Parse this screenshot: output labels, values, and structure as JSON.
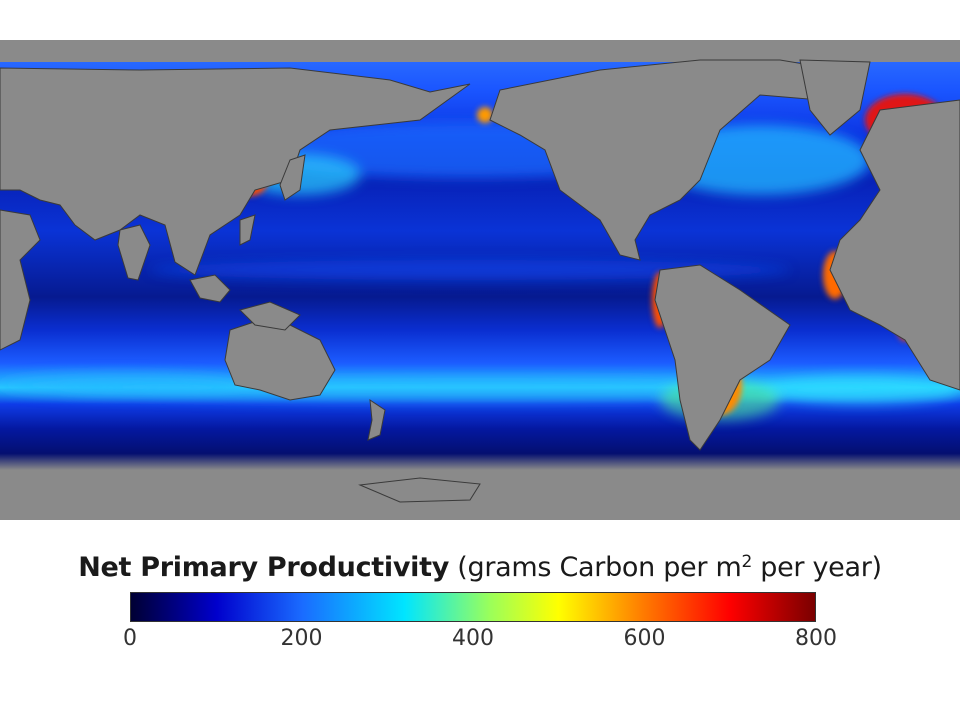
{
  "legend": {
    "title_bold": "Net Primary Productivity",
    "title_unit_prefix": "(grams Carbon per m",
    "title_unit_sup": "2",
    "title_unit_suffix": " per year)",
    "scale_min": 0,
    "scale_max": 800,
    "tick_labels": [
      "0",
      "200",
      "400",
      "600",
      "800"
    ],
    "tick_values": [
      0,
      200,
      400,
      600,
      800
    ],
    "colormap_stops": [
      {
        "value": 0,
        "color": "#000033"
      },
      {
        "value": 100,
        "color": "#0000cc"
      },
      {
        "value": 200,
        "color": "#1a6bff"
      },
      {
        "value": 320,
        "color": "#00e5ff"
      },
      {
        "value": 420,
        "color": "#9bff5a"
      },
      {
        "value": 500,
        "color": "#ffff00"
      },
      {
        "value": 600,
        "color": "#ff7a00"
      },
      {
        "value": 700,
        "color": "#ff0000"
      },
      {
        "value": 800,
        "color": "#7a0000"
      }
    ]
  },
  "map": {
    "land_color": "#8a8a8a",
    "ocean_color": "#0b2fd9",
    "coastline_color": "#3a3a3a"
  }
}
